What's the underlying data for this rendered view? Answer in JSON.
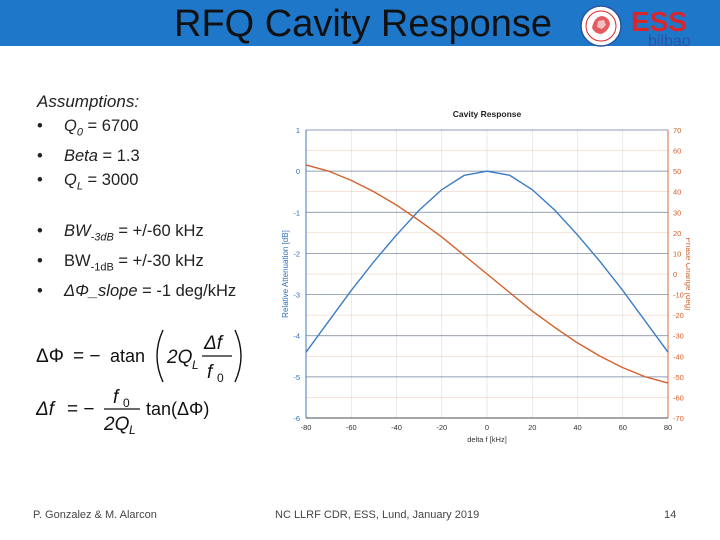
{
  "slide": {
    "title": "RFQ Cavity Response",
    "logo": {
      "brand": "ESS",
      "sub": "bilbao",
      "colors": {
        "red": "#d8262d",
        "blue": "#2a55a6"
      }
    },
    "colors": {
      "band": "#1f77c9"
    },
    "footer": {
      "left": "P. Gonzalez & M. Alarcon",
      "center": "NC LLRF CDR, ESS, Lund, January 2019",
      "page": "14"
    }
  },
  "assumptions": {
    "title": "Assumptions:",
    "bullet": "•",
    "group1": [
      {
        "label": "Q",
        "sub": "0",
        "value": " = 6700"
      },
      {
        "label": "Beta",
        "sub": "",
        "value": " = 1.3"
      },
      {
        "label": "Q",
        "sub": "L",
        "value": " = 3000"
      }
    ],
    "group2": [
      {
        "label": "BW",
        "sub": "-3dB",
        "value": " = +/-60 kHz",
        "italic": true
      },
      {
        "label": "BW",
        "sub": "-1dB",
        "value": " = +/-30 kHz",
        "italic": false
      },
      {
        "label": "ΔΦ_slope",
        "sub": "",
        "value": " = -1 deg/kHz",
        "italic": true
      }
    ]
  },
  "equations": {
    "eq1": {
      "lhs": "ΔΦ",
      "eq": "= −",
      "func": "atan",
      "coef": "2Q",
      "coef_sub": "L",
      "frac_num": "Δf",
      "frac_den": "f",
      "frac_den_sub": "0"
    },
    "eq2": {
      "lhs": "Δf",
      "eq": "= −",
      "num": "f",
      "num_sub": "0",
      "den": "2Q",
      "den_sub": "L",
      "rhs": "tan(ΔΦ)"
    }
  },
  "chart_data": {
    "type": "line",
    "title": "Cavity Response",
    "xlabel": "delta f [kHz]",
    "ylabel_left": "Relative Attenuation [dB]",
    "ylabel_right": "Phase Change [deg]",
    "xlim": [
      -80,
      80
    ],
    "xticks": [
      -80,
      -60,
      -40,
      -20,
      0,
      20,
      40,
      60,
      80
    ],
    "ylim_left": [
      -6,
      1
    ],
    "yticks_left": [
      1,
      0,
      -1,
      -2,
      -3,
      -4,
      -5,
      -6
    ],
    "ylim_right": [
      -70,
      70
    ],
    "yticks_right": [
      70,
      60,
      50,
      40,
      30,
      20,
      10,
      0,
      -10,
      -20,
      -30,
      -40,
      -50,
      -60,
      -70
    ],
    "grid": true,
    "colors": {
      "attenuation": "#3b7dc4",
      "phase": "#d3612a",
      "left_axis": "#2d6fb8",
      "right_axis": "#d3612a"
    },
    "series": [
      {
        "axis": "left",
        "x": [
          -80,
          -70,
          -60,
          -50,
          -40,
          -30,
          -20,
          -10,
          0,
          10,
          20,
          30,
          40,
          50,
          60,
          70,
          80
        ],
        "y": [
          -4.4,
          -3.65,
          -2.9,
          -2.2,
          -1.55,
          -0.95,
          -0.45,
          -0.1,
          0.0,
          -0.1,
          -0.45,
          -0.95,
          -1.55,
          -2.2,
          -2.9,
          -3.65,
          -4.4
        ]
      },
      {
        "axis": "right",
        "x": [
          -80,
          -70,
          -60,
          -50,
          -40,
          -30,
          -20,
          -10,
          0,
          10,
          20,
          30,
          40,
          50,
          60,
          70,
          80
        ],
        "y": [
          53,
          50,
          45.5,
          40,
          33.5,
          26,
          18,
          9,
          0,
          -9,
          -18,
          -26,
          -33.5,
          -40,
          -45.5,
          -50,
          -53
        ]
      }
    ]
  }
}
